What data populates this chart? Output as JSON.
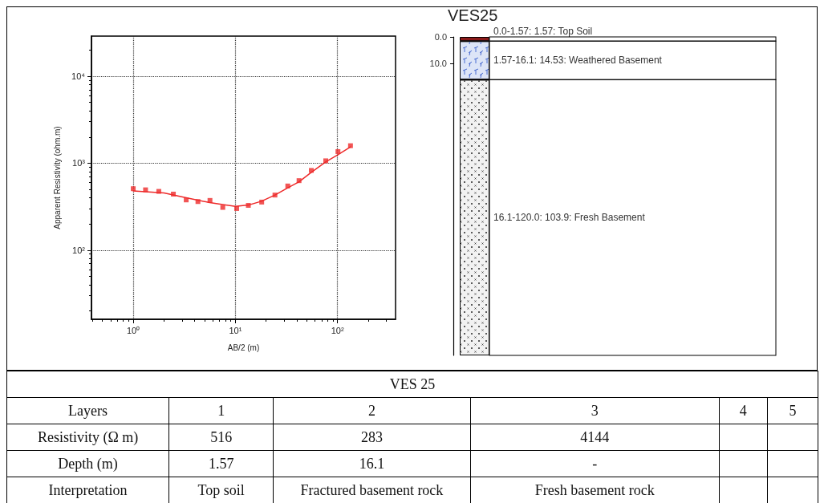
{
  "chart_data": [
    {
      "type": "scatter",
      "xlabel": "AB/2 (m)",
      "ylabel": "Apparent Resistivity (ohm.m)",
      "log": "xy",
      "grid": true,
      "legend": false,
      "xlim": [
        0.39,
        370
      ],
      "ylim": [
        16,
        29000
      ],
      "xticks": [
        {
          "value": 1,
          "label": "10⁰"
        },
        {
          "value": 10,
          "label": "10¹"
        },
        {
          "value": 100,
          "label": "10²"
        }
      ],
      "yticks": [
        {
          "value": 100,
          "label": "10²"
        },
        {
          "value": 1000,
          "label": "10³"
        },
        {
          "value": 10000,
          "label": "10⁴"
        }
      ],
      "series": [
        {
          "type": "scatter",
          "color": "#ee2a2a",
          "marker": "square",
          "x": [
            1.0,
            1.32,
            1.78,
            2.47,
            3.3,
            4.3,
            5.64,
            7.53,
            10.3,
            13.4,
            18.1,
            24.4,
            32.6,
            42,
            55.4,
            76.7,
            101,
            134
          ],
          "values": [
            509,
            494,
            474,
            441,
            378,
            362,
            373,
            310,
            301,
            327,
            357,
            430,
            547,
            630,
            826,
            1066,
            1360,
            1590
          ]
        },
        {
          "type": "line",
          "color": "#ee2a2a",
          "marker": "none",
          "x": [
            1,
            2,
            3.3,
            5.6,
            10,
            13.4,
            18,
            24.4,
            32.6,
            42,
            55,
            77,
            101,
            134
          ],
          "values": [
            480,
            455,
            400,
            352,
            318,
            330,
            365,
            430,
            520,
            610,
            780,
            1040,
            1250,
            1540
          ]
        }
      ]
    },
    {
      "type": "bar",
      "title": "VES25",
      "stacked": true,
      "legend": false,
      "categories": [
        null
      ],
      "ylim": [
        120,
        0
      ],
      "yticks": [
        {
          "value": 0,
          "label": "0.0"
        },
        {
          "value": 10,
          "label": "10.0"
        }
      ],
      "series": [
        {
          "name": "0.0-1.57: 1.57: Top Soil",
          "color": "#8b1a1a",
          "values": [
            1.57
          ]
        },
        {
          "name": "1.57-16.1: 14.53: Weathered Basement",
          "color": "#dde5f7",
          "values": [
            14.53
          ]
        },
        {
          "name": "16.1-120.0: 103.9: Fresh Basement",
          "color": "#f2f2f2",
          "values": [
            103.9
          ]
        }
      ]
    },
    {
      "type": "other",
      "title": "VES 25",
      "categories": [
        "Layers",
        "1",
        "2",
        "3",
        "4",
        "5"
      ],
      "y_categories": [
        "Resistivity (Ω m)",
        "Depth (m)",
        "Interpretation"
      ],
      "cell_labels": [
        [
          "516",
          "283",
          "4144",
          null,
          null
        ],
        [
          "1.57",
          "16.1",
          "-",
          null,
          null
        ],
        [
          "Top soil",
          "Fractured basement rock",
          "Fresh basement rock",
          null,
          null
        ]
      ]
    }
  ]
}
